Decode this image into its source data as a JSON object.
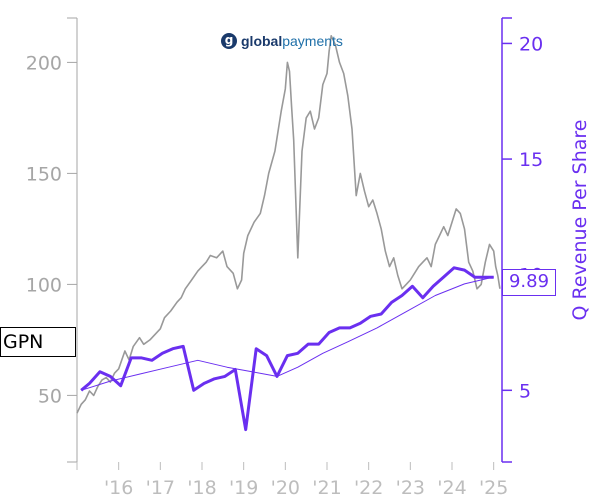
{
  "logo": {
    "mark": "g",
    "name_bold": "global",
    "name_light": "payments"
  },
  "ticker": "GPN",
  "last_value_label": "9.89",
  "colors": {
    "price": "#999999",
    "revenue": "#6a2ff0",
    "revenue_trend": "#6a2ff0",
    "left_axis": "#a6a6a6",
    "x_axis": "#bdbdbd"
  },
  "chart_data": {
    "type": "line",
    "title": "",
    "xlabel": "",
    "y_left": {
      "label": "",
      "ticks": [
        50,
        100,
        150,
        200
      ],
      "range": [
        20,
        220
      ]
    },
    "y_right": {
      "label": "Q Revenue Per Share",
      "ticks": [
        5,
        10,
        15,
        20
      ],
      "range": [
        1.9,
        21.1
      ]
    },
    "x_range": [
      2015.0,
      2025.2
    ],
    "x_ticks": [
      {
        "value": 2016,
        "label": "'16"
      },
      {
        "value": 2017,
        "label": "'17"
      },
      {
        "value": 2018,
        "label": "'18"
      },
      {
        "value": 2019,
        "label": "'19"
      },
      {
        "value": 2020,
        "label": "'20"
      },
      {
        "value": 2021,
        "label": "'21"
      },
      {
        "value": 2022,
        "label": "'22"
      },
      {
        "value": 2023,
        "label": "'23"
      },
      {
        "value": 2024,
        "label": "'24"
      },
      {
        "value": 2025,
        "label": "'25"
      }
    ],
    "series": [
      {
        "axis": "left",
        "style": "price",
        "x": [
          2015.0,
          2015.1,
          2015.2,
          2015.3,
          2015.4,
          2015.5,
          2015.6,
          2015.7,
          2015.8,
          2015.9,
          2016.0,
          2016.15,
          2016.25,
          2016.35,
          2016.5,
          2016.6,
          2016.75,
          2016.9,
          2017.0,
          2017.1,
          2017.25,
          2017.4,
          2017.5,
          2017.6,
          2017.75,
          2017.9,
          2018.0,
          2018.1,
          2018.2,
          2018.35,
          2018.5,
          2018.6,
          2018.75,
          2018.85,
          2018.95,
          2019.0,
          2019.1,
          2019.25,
          2019.4,
          2019.5,
          2019.6,
          2019.75,
          2019.9,
          2020.0,
          2020.05,
          2020.1,
          2020.15,
          2020.2,
          2020.3,
          2020.4,
          2020.5,
          2020.6,
          2020.7,
          2020.8,
          2020.9,
          2021.0,
          2021.05,
          2021.1,
          2021.2,
          2021.3,
          2021.4,
          2021.5,
          2021.6,
          2021.7,
          2021.8,
          2021.9,
          2022.0,
          2022.1,
          2022.2,
          2022.3,
          2022.4,
          2022.5,
          2022.6,
          2022.7,
          2022.8,
          2022.9,
          2023.0,
          2023.1,
          2023.2,
          2023.3,
          2023.4,
          2023.5,
          2023.6,
          2023.7,
          2023.8,
          2023.9,
          2024.0,
          2024.1,
          2024.2,
          2024.3,
          2024.4,
          2024.5,
          2024.6,
          2024.7,
          2024.8,
          2024.9,
          2025.0,
          2025.05,
          2025.1,
          2025.15
        ],
        "y": [
          42,
          46,
          48,
          52,
          50,
          54,
          57,
          58,
          56,
          60,
          62,
          70,
          66,
          72,
          76,
          73,
          75,
          78,
          80,
          85,
          88,
          92,
          94,
          98,
          102,
          106,
          108,
          110,
          113,
          112,
          115,
          108,
          105,
          98,
          102,
          114,
          122,
          128,
          132,
          140,
          150,
          160,
          178,
          188,
          200,
          196,
          180,
          165,
          112,
          160,
          175,
          178,
          170,
          175,
          190,
          195,
          205,
          212,
          208,
          200,
          195,
          185,
          170,
          140,
          150,
          142,
          135,
          138,
          132,
          125,
          115,
          108,
          112,
          104,
          98,
          100,
          102,
          105,
          108,
          110,
          112,
          108,
          118,
          122,
          126,
          122,
          128,
          134,
          132,
          125,
          110,
          106,
          98,
          100,
          110,
          118,
          115,
          108,
          104,
          98
        ]
      },
      {
        "axis": "right",
        "style": "revenue",
        "x": [
          2015.1,
          2015.3,
          2015.55,
          2015.8,
          2016.05,
          2016.3,
          2016.55,
          2016.8,
          2017.05,
          2017.3,
          2017.55,
          2017.8,
          2018.05,
          2018.3,
          2018.55,
          2018.8,
          2019.05,
          2019.3,
          2019.55,
          2019.8,
          2020.05,
          2020.3,
          2020.55,
          2020.8,
          2021.05,
          2021.3,
          2021.55,
          2021.8,
          2022.05,
          2022.3,
          2022.55,
          2022.8,
          2023.05,
          2023.3,
          2023.55,
          2023.8,
          2024.05,
          2024.3,
          2024.55,
          2024.8,
          2025.0
        ],
        "y": [
          5.0,
          5.3,
          5.8,
          5.6,
          5.2,
          6.4,
          6.4,
          6.3,
          6.6,
          6.8,
          6.9,
          5.0,
          5.3,
          5.5,
          5.6,
          5.9,
          3.3,
          6.8,
          6.5,
          5.6,
          6.5,
          6.6,
          7.0,
          7.0,
          7.5,
          7.7,
          7.7,
          7.9,
          8.2,
          8.3,
          8.8,
          9.1,
          9.5,
          9.0,
          9.5,
          9.9,
          10.3,
          10.2,
          9.89,
          9.89,
          9.89
        ]
      },
      {
        "axis": "right",
        "style": "trend",
        "x": [
          2015.1,
          2015.8,
          2016.5,
          2017.2,
          2017.9,
          2018.6,
          2019.2,
          2019.8,
          2020.3,
          2020.9,
          2021.5,
          2022.2,
          2022.9,
          2023.6,
          2024.3,
          2025.0
        ],
        "y": [
          5.0,
          5.4,
          5.7,
          6.0,
          6.3,
          6.0,
          5.8,
          5.6,
          6.0,
          6.6,
          7.1,
          7.7,
          8.4,
          9.1,
          9.6,
          9.9
        ]
      }
    ]
  }
}
